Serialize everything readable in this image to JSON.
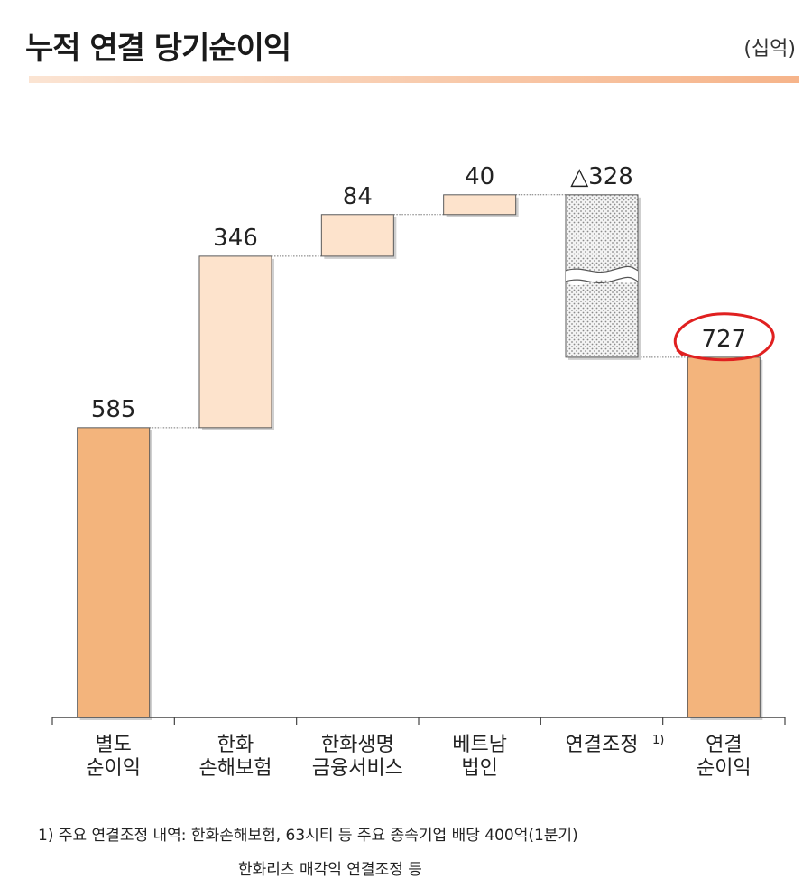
{
  "header": {
    "title": "누적 연결 당기순이익",
    "unit": "(십억)"
  },
  "chart_data": {
    "type": "bar",
    "subtype": "waterfall",
    "categories": [
      [
        "별도",
        "순이익"
      ],
      [
        "한화",
        "손해보험"
      ],
      [
        "한화생명",
        "금융서비스"
      ],
      [
        "베트남",
        "법인"
      ],
      [
        "연결조정"
      ],
      [
        "연결",
        "순이익"
      ]
    ],
    "category_note_marker": "1)",
    "values": [
      585,
      346,
      84,
      40,
      -328,
      727
    ],
    "value_labels": [
      "585",
      "346",
      "84",
      "40",
      "△328",
      "727"
    ],
    "kinds": [
      "total",
      "increase",
      "increase",
      "increase",
      "decrease",
      "total"
    ],
    "highlighted_label_index": 5,
    "colors": {
      "total": "#f3b47c",
      "increase": "#fde3cc",
      "decrease_pattern": "#d6d6d6",
      "highlight_circle": "#e02020",
      "title_rule": "#f6b48a"
    },
    "decrease_break_marks": true
  },
  "footnote": {
    "line1": "1) 주요 연결조정 내역: 한화손해보험, 63시티 등 주요 종속기업 배당 400억(1분기)",
    "line2": "한화리츠 매각익 연결조정 등"
  }
}
